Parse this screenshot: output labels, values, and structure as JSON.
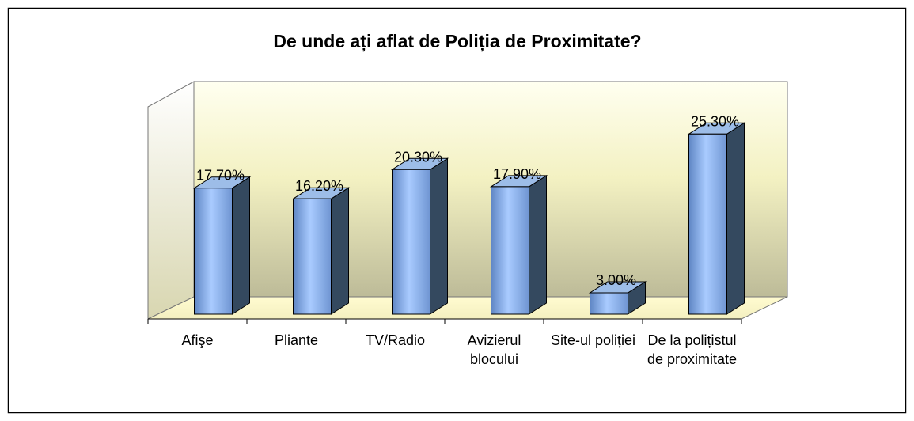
{
  "chart_data": {
    "type": "bar3d",
    "title": "De unde ați aflat de Poliția de Proximitate?",
    "categories": [
      "Afişe",
      "Pliante",
      "TV/Radio",
      "Avizierul blocului",
      "Site-ul poliției",
      "De la polițistul de proximitate"
    ],
    "values": [
      17.7,
      16.2,
      20.3,
      17.9,
      3.0,
      25.3
    ],
    "value_labels": [
      "17.70%",
      "16.20%",
      "20.30%",
      "17.90%",
      "3.00%",
      "25.30%"
    ],
    "color": "#7fa6e0"
  }
}
